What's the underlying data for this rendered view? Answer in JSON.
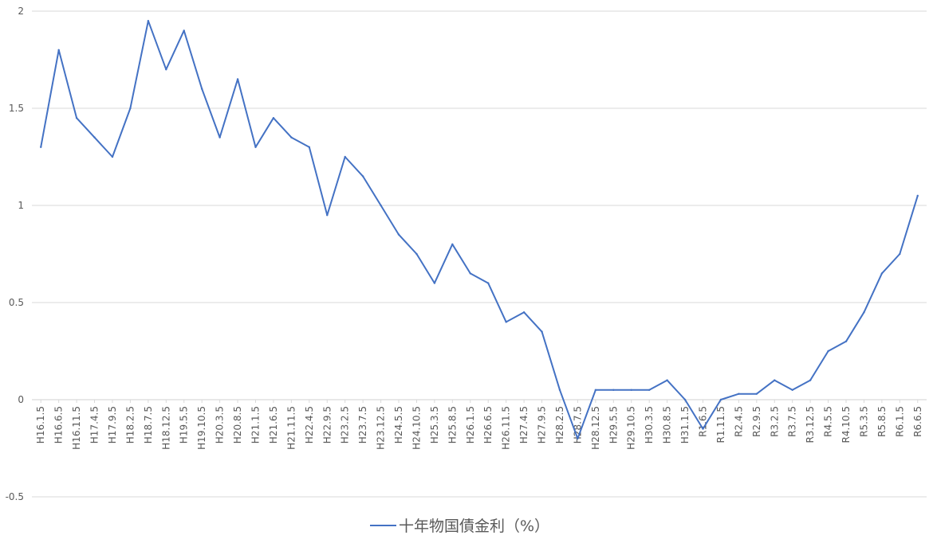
{
  "chart_data": {
    "type": "line",
    "title": "",
    "xlabel": "",
    "ylabel": "",
    "ylim": [
      -0.5,
      2
    ],
    "grid": true,
    "legend_position": "bottom",
    "line_color": "#4472C4",
    "grid_color": "#D9D9D9",
    "y_ticks": [
      "2",
      "1.5",
      "1",
      "0.5",
      "0",
      "-0.5"
    ],
    "series": [
      {
        "name": "十年物国債金利（%）",
        "x": [
          "H16.1.5",
          "H16.6.5",
          "H16.11.5",
          "H17.4.5",
          "H17.9.5",
          "H18.2.5",
          "H18.7.5",
          "H18.12.5",
          "H19.5.5",
          "H19.10.5",
          "H20.3.5",
          "H20.8.5",
          "H21.1.5",
          "H21.6.5",
          "H21.11.5",
          "H22.4.5",
          "H22.9.5",
          "H23.2.5",
          "H23.7.5",
          "H23.12.5",
          "H24.5.5",
          "H24.10.5",
          "H25.3.5",
          "H25.8.5",
          "H26.1.5",
          "H26.6.5",
          "H26.11.5",
          "H27.4.5",
          "H27.9.5",
          "H28.2.5",
          "H28.7.5",
          "H28.12.5",
          "H29.5.5",
          "H29.10.5",
          "H30.3.5",
          "H30.8.5",
          "H31.1.5",
          "R1.6.5",
          "R1.11.5",
          "R2.4.5",
          "R2.9.5",
          "R3.2.5",
          "R3.7.5",
          "R3.12.5",
          "R4.5.5",
          "R4.10.5",
          "R5.3.5",
          "R5.8.5",
          "R6.1.5",
          "R6.6.5"
        ],
        "values": [
          1.3,
          1.8,
          1.45,
          1.35,
          1.25,
          1.5,
          1.95,
          1.7,
          1.9,
          1.6,
          1.35,
          1.65,
          1.3,
          1.45,
          1.35,
          1.3,
          0.95,
          1.25,
          1.15,
          1.0,
          0.85,
          0.75,
          0.6,
          0.8,
          0.65,
          0.6,
          0.4,
          0.45,
          0.35,
          0.05,
          -0.2,
          0.05,
          0.05,
          0.05,
          0.05,
          0.1,
          0.0,
          -0.15,
          0.0,
          0.03,
          0.03,
          0.1,
          0.05,
          0.1,
          0.25,
          0.3,
          0.45,
          0.65,
          0.75,
          1.05
        ]
      }
    ]
  }
}
